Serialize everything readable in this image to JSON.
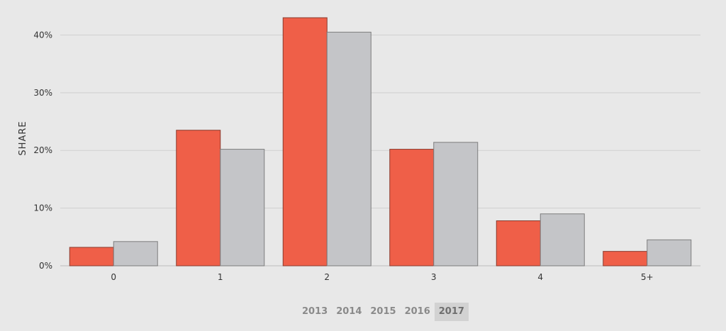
{
  "chart_data": {
    "type": "bar",
    "categories": [
      "0",
      "1",
      "2",
      "3",
      "4",
      "5+"
    ],
    "series": [
      {
        "color": "#ef5f48",
        "values": [
          3.2,
          23.5,
          43.0,
          20.2,
          7.8,
          2.5
        ]
      },
      {
        "color": "#c4c5c8",
        "values": [
          4.2,
          20.2,
          40.5,
          21.4,
          9.0,
          4.5
        ]
      }
    ],
    "xlabel": "",
    "ylabel": "SHARE",
    "ylim": [
      0,
      43.0
    ],
    "yticks": [
      0,
      10,
      20,
      30,
      40
    ],
    "ytick_labels": [
      "0%",
      "10%",
      "20%",
      "30%",
      "40%"
    ],
    "grid": true
  },
  "year_selector": {
    "years": [
      "2013",
      "2014",
      "2015",
      "2016",
      "2017"
    ],
    "selected": "2017"
  }
}
